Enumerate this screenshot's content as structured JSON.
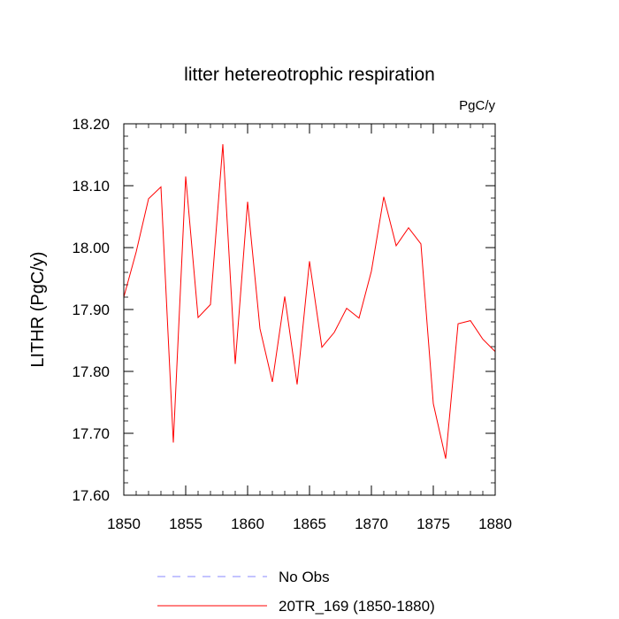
{
  "chart_data": {
    "type": "line",
    "title": "litter hetereotrophic respiration",
    "units_label": "PgC/y",
    "xlabel": "",
    "ylabel": "LITHR  (PgC/y)",
    "xlim": [
      1850,
      1880
    ],
    "ylim": [
      17.6,
      18.2
    ],
    "x_ticks": [
      1850,
      1855,
      1860,
      1865,
      1870,
      1875,
      1880
    ],
    "x_tick_labels": [
      "1850",
      "1855",
      "1860",
      "1865",
      "1870",
      "1875",
      "1880"
    ],
    "y_ticks": [
      17.6,
      17.7,
      17.8,
      17.9,
      18.0,
      18.1,
      18.2
    ],
    "y_tick_labels": [
      "17.60",
      "17.70",
      "17.80",
      "17.90",
      "18.00",
      "18.10",
      "18.20"
    ],
    "grid": false,
    "legend_position": "bottom",
    "series": [
      {
        "name": "No Obs",
        "style": "dashed",
        "color": "#8888ff",
        "x": [],
        "values": []
      },
      {
        "name": "20TR_169 (1850-1880)",
        "style": "solid",
        "color": "#ff0000",
        "x": [
          1850,
          1851,
          1852,
          1853,
          1854,
          1855,
          1856,
          1857,
          1858,
          1859,
          1860,
          1861,
          1862,
          1863,
          1864,
          1865,
          1866,
          1867,
          1868,
          1869,
          1870,
          1871,
          1872,
          1873,
          1874,
          1875,
          1876,
          1877,
          1878,
          1879,
          1880
        ],
        "values": [
          17.92,
          17.993,
          18.079,
          18.098,
          17.685,
          18.115,
          17.887,
          17.908,
          18.167,
          17.812,
          18.074,
          17.869,
          17.783,
          17.921,
          17.779,
          17.978,
          17.839,
          17.863,
          17.902,
          17.886,
          17.962,
          18.082,
          18.003,
          18.032,
          18.006,
          17.748,
          17.659,
          17.877,
          17.882,
          17.852,
          17.832
        ]
      }
    ]
  }
}
